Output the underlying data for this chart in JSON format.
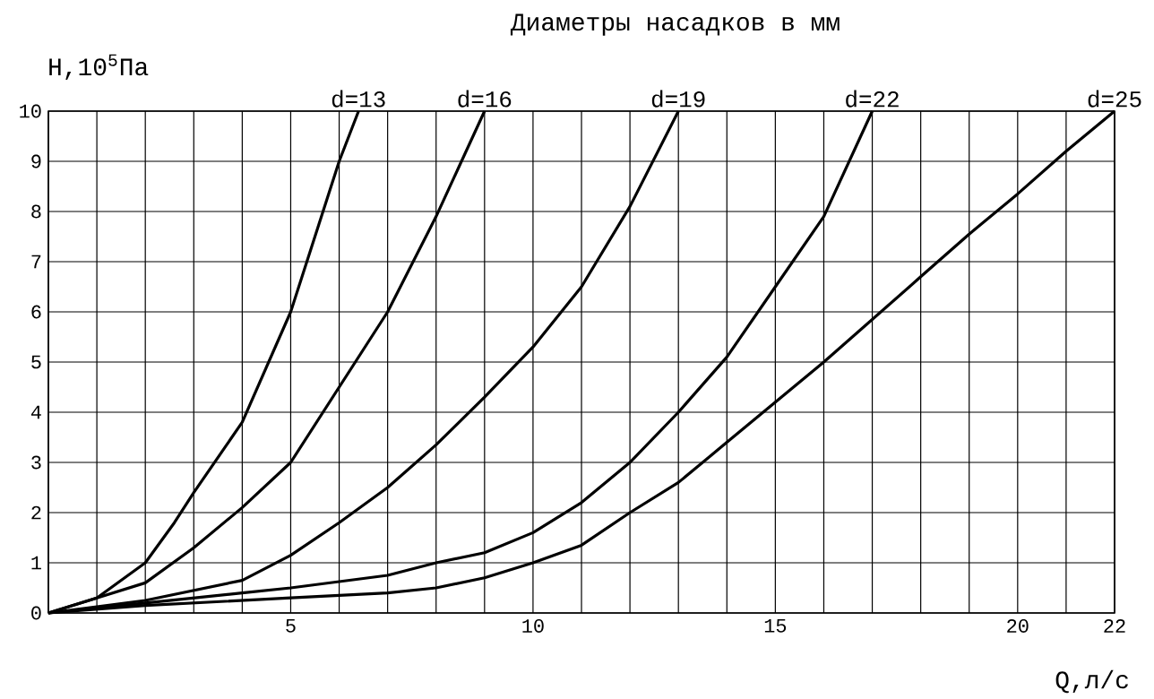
{
  "chart_data": {
    "type": "line",
    "title": "Диаметры насадков в мм",
    "ylabel": "H,10$^{5}$Па",
    "xlabel": "Q,л/с",
    "xlim": [
      0,
      22
    ],
    "ylim": [
      0,
      10
    ],
    "xticks": [
      {
        "value": 0,
        "label": null
      },
      {
        "value": 1,
        "label": null
      },
      {
        "value": 2,
        "label": null
      },
      {
        "value": 3,
        "label": null
      },
      {
        "value": 4,
        "label": null
      },
      5,
      {
        "value": 6,
        "label": null
      },
      {
        "value": 7,
        "label": null
      },
      {
        "value": 8,
        "label": null
      },
      {
        "value": 9,
        "label": null
      },
      10,
      {
        "value": 11,
        "label": null
      },
      {
        "value": 12,
        "label": null
      },
      {
        "value": 13,
        "label": null
      },
      {
        "value": 14,
        "label": null
      },
      15,
      {
        "value": 16,
        "label": null
      },
      {
        "value": 17,
        "label": null
      },
      {
        "value": 18,
        "label": null
      },
      {
        "value": 19,
        "label": null
      },
      20,
      {
        "value": 21,
        "label": null
      },
      22
    ],
    "yticks": [
      0,
      1,
      2,
      3,
      4,
      5,
      6,
      7,
      8,
      9,
      10
    ],
    "grid": true,
    "marker": "none",
    "line_style": "solid",
    "series": [
      {
        "name": "d=13",
        "color": "#000000",
        "x": [
          0,
          1,
          2,
          2.6,
          3,
          4,
          5,
          5.5,
          6,
          6.4
        ],
        "values": [
          0,
          0.3,
          1,
          1.8,
          2.4,
          3.8,
          6,
          7.5,
          9,
          10
        ]
      },
      {
        "name": "d=16",
        "color": "#000000",
        "x": [
          0,
          1,
          2,
          3,
          4,
          5,
          6,
          7,
          8,
          9
        ],
        "values": [
          0,
          0.3,
          0.6,
          1.3,
          2.1,
          3,
          4.5,
          6,
          7.9,
          10
        ]
      },
      {
        "name": "d=19",
        "color": "#000000",
        "x": [
          0,
          2,
          4,
          5,
          6,
          7,
          8,
          9,
          10,
          11,
          12,
          13
        ],
        "values": [
          0,
          0.25,
          0.65,
          1.15,
          1.8,
          2.5,
          3.35,
          4.3,
          5.3,
          6.5,
          8.1,
          10
        ]
      },
      {
        "name": "d=22",
        "color": "#000000",
        "x": [
          0,
          2,
          4,
          5,
          7,
          8,
          9,
          10,
          11,
          12,
          13,
          14,
          15,
          16,
          17
        ],
        "values": [
          0,
          0.2,
          0.4,
          0.5,
          0.75,
          1,
          1.2,
          1.6,
          2.2,
          3,
          4,
          5.1,
          6.5,
          7.9,
          10
        ]
      },
      {
        "name": "d=25",
        "color": "#000000",
        "x": [
          0,
          2,
          5,
          7,
          8,
          9,
          10,
          11,
          12,
          13,
          14,
          15,
          16,
          17,
          18,
          19,
          20,
          21,
          22
        ],
        "values": [
          0,
          0.15,
          0.3,
          0.4,
          0.5,
          0.7,
          1,
          1.35,
          2,
          2.6,
          3.4,
          4.2,
          5,
          5.85,
          6.7,
          7.55,
          8.35,
          9.2,
          10
        ]
      }
    ]
  }
}
